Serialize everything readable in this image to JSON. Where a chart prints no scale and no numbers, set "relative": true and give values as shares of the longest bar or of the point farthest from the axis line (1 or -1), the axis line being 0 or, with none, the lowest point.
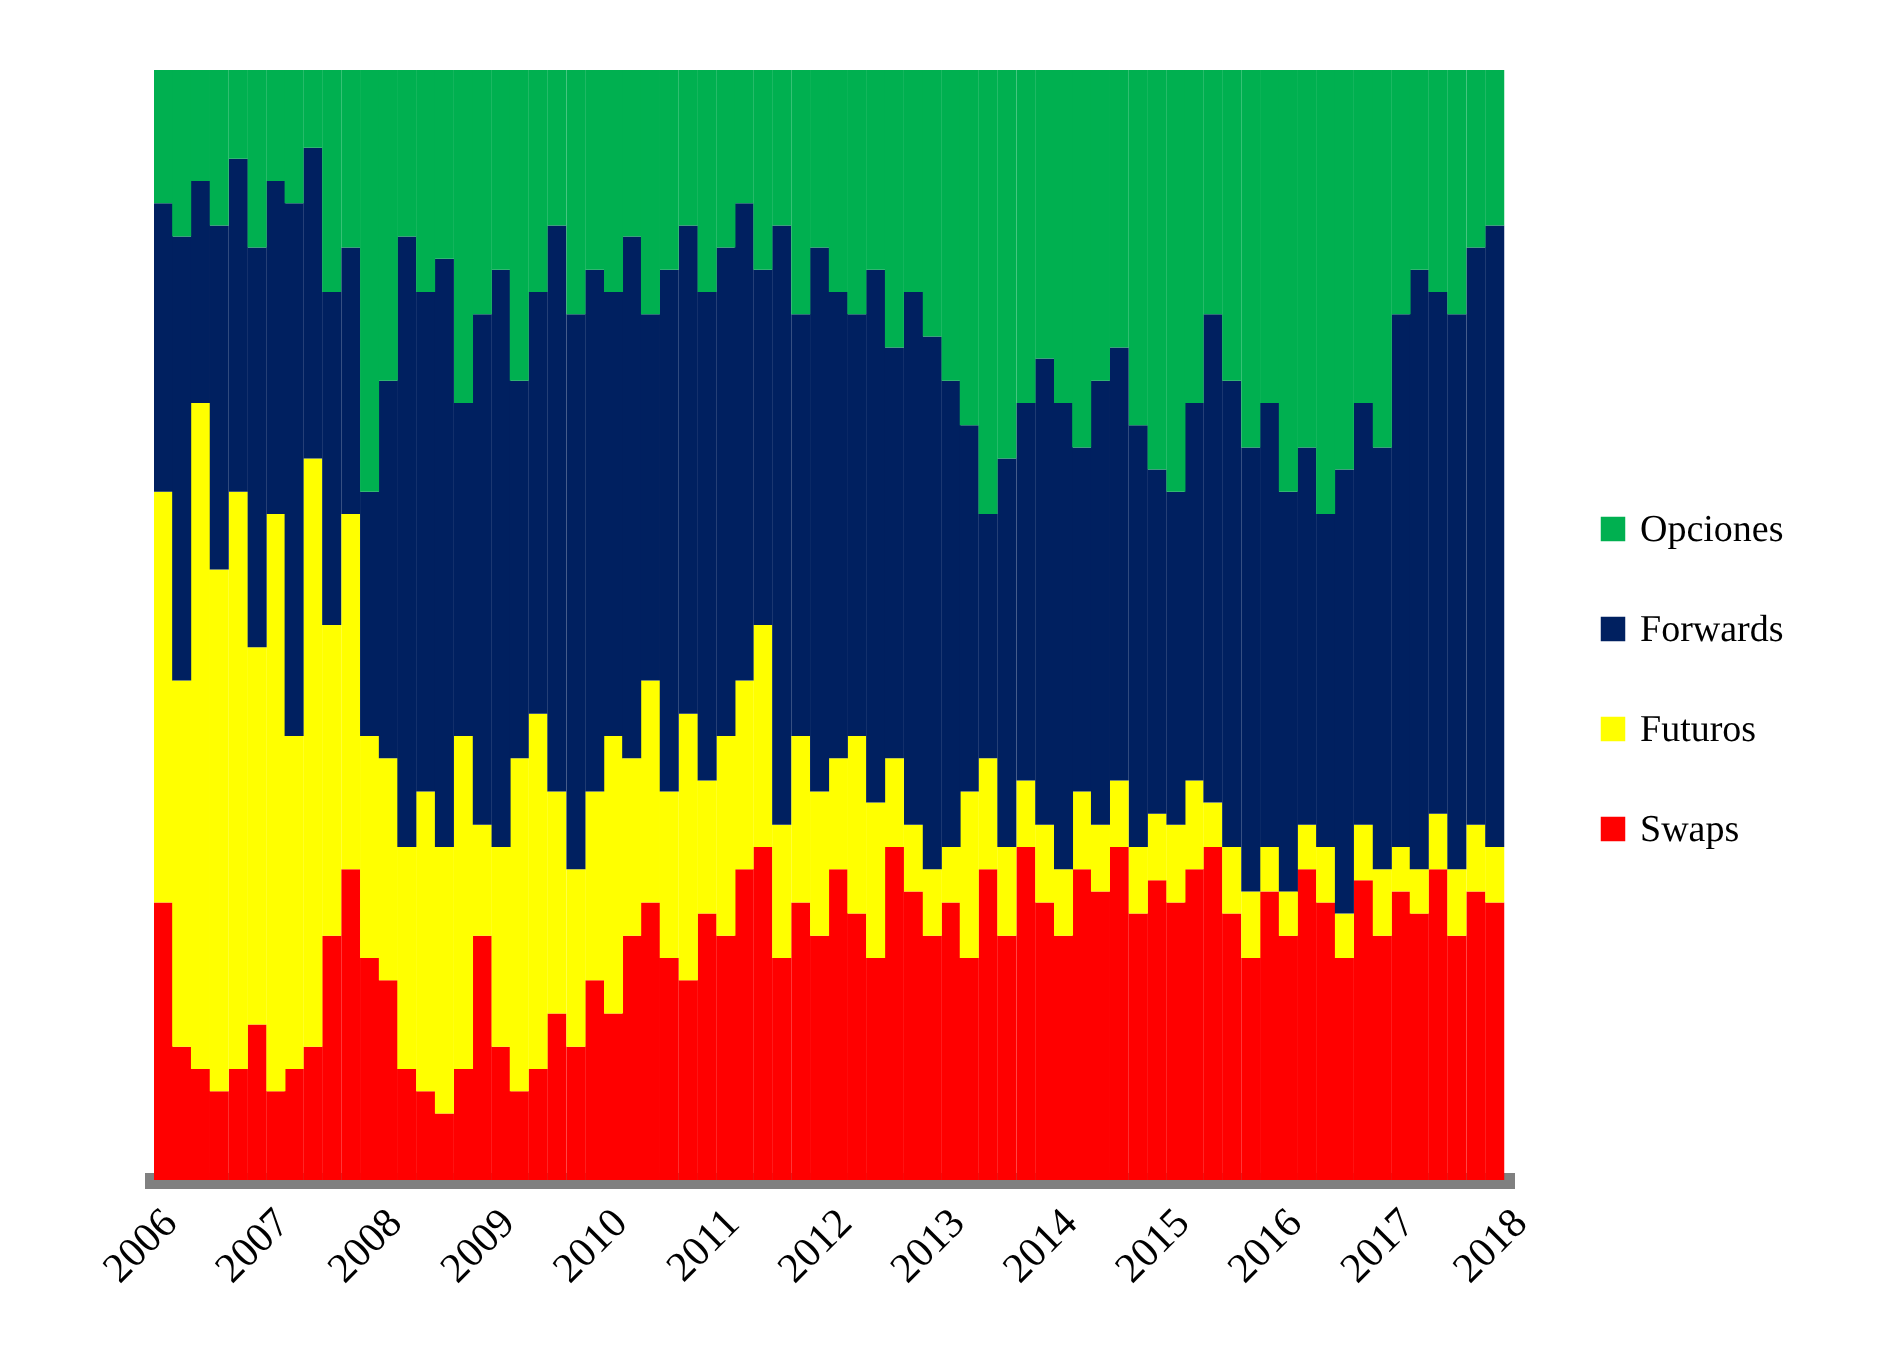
{
  "chart_data": {
    "type": "bar",
    "stacked": true,
    "relative": true,
    "legend": "right",
    "grid": false,
    "x": [
      "2006-01",
      "2006-03",
      "2006-05",
      "2006-07",
      "2006-09",
      "2006-11",
      "2007-01",
      "2007-03",
      "2007-05",
      "2007-07",
      "2007-09",
      "2007-11",
      "2008-01",
      "2008-03",
      "2008-05",
      "2008-07",
      "2008-09",
      "2008-11",
      "2009-01",
      "2009-03",
      "2009-05",
      "2009-07",
      "2009-09",
      "2009-11",
      "2010-01",
      "2010-03",
      "2010-05",
      "2010-07",
      "2010-09",
      "2010-11",
      "2011-01",
      "2011-03",
      "2011-05",
      "2011-07",
      "2011-09",
      "2011-11",
      "2012-01",
      "2012-03",
      "2012-05",
      "2012-07",
      "2012-09",
      "2012-11",
      "2013-01",
      "2013-03",
      "2013-05",
      "2013-07",
      "2013-09",
      "2013-11",
      "2014-01",
      "2014-03",
      "2014-05",
      "2014-07",
      "2014-09",
      "2014-11",
      "2015-01",
      "2015-03",
      "2015-05",
      "2015-07",
      "2015-09",
      "2015-11",
      "2016-01",
      "2016-03",
      "2016-05",
      "2016-07",
      "2016-09",
      "2016-11",
      "2017-01",
      "2017-03",
      "2017-05",
      "2017-07",
      "2017-09",
      "2017-11"
    ],
    "xlim": [
      "2006-01-01",
      "2018-01-01"
    ],
    "xticks": [
      "2006",
      "2007",
      "2008",
      "2009",
      "2010",
      "2011",
      "2012",
      "2013",
      "2014",
      "2015",
      "2016",
      "2017",
      "2018"
    ],
    "series": [
      {
        "name": "Swaps",
        "color": "#ff0000",
        "values": [
          0.25,
          0.12,
          0.1,
          0.08,
          0.1,
          0.14,
          0.08,
          0.1,
          0.12,
          0.22,
          0.28,
          0.2,
          0.18,
          0.1,
          0.08,
          0.06,
          0.1,
          0.22,
          0.12,
          0.08,
          0.1,
          0.15,
          0.12,
          0.18,
          0.15,
          0.22,
          0.25,
          0.2,
          0.18,
          0.24,
          0.22,
          0.28,
          0.3,
          0.2,
          0.25,
          0.22,
          0.28,
          0.24,
          0.2,
          0.3,
          0.26,
          0.22,
          0.25,
          0.2,
          0.28,
          0.22,
          0.3,
          0.25,
          0.22,
          0.28,
          0.26,
          0.3,
          0.24,
          0.27,
          0.25,
          0.28,
          0.3,
          0.24,
          0.2,
          0.26,
          0.22,
          0.28,
          0.25,
          0.2,
          0.27,
          0.22,
          0.26,
          0.24,
          0.28,
          0.22,
          0.26,
          0.25
        ]
      },
      {
        "name": "Futuros",
        "color": "#ffff00",
        "values": [
          0.37,
          0.33,
          0.6,
          0.47,
          0.52,
          0.34,
          0.52,
          0.3,
          0.53,
          0.28,
          0.32,
          0.2,
          0.2,
          0.2,
          0.27,
          0.24,
          0.3,
          0.1,
          0.18,
          0.3,
          0.32,
          0.2,
          0.16,
          0.17,
          0.25,
          0.16,
          0.2,
          0.15,
          0.24,
          0.12,
          0.18,
          0.17,
          0.2,
          0.12,
          0.15,
          0.13,
          0.1,
          0.16,
          0.14,
          0.08,
          0.06,
          0.06,
          0.05,
          0.15,
          0.1,
          0.08,
          0.06,
          0.07,
          0.06,
          0.07,
          0.06,
          0.06,
          0.06,
          0.06,
          0.07,
          0.08,
          0.04,
          0.06,
          0.06,
          0.04,
          0.04,
          0.04,
          0.05,
          0.04,
          0.05,
          0.06,
          0.04,
          0.04,
          0.05,
          0.06,
          0.06,
          0.05
        ]
      },
      {
        "name": "Forwards",
        "color": "#002060",
        "values": [
          0.26,
          0.4,
          0.2,
          0.31,
          0.3,
          0.36,
          0.3,
          0.48,
          0.28,
          0.3,
          0.24,
          0.22,
          0.34,
          0.55,
          0.45,
          0.53,
          0.3,
          0.46,
          0.52,
          0.34,
          0.38,
          0.51,
          0.5,
          0.47,
          0.4,
          0.47,
          0.33,
          0.47,
          0.44,
          0.44,
          0.44,
          0.43,
          0.32,
          0.54,
          0.38,
          0.49,
          0.42,
          0.38,
          0.48,
          0.37,
          0.48,
          0.48,
          0.42,
          0.33,
          0.22,
          0.35,
          0.34,
          0.42,
          0.42,
          0.31,
          0.4,
          0.39,
          0.38,
          0.31,
          0.3,
          0.34,
          0.44,
          0.42,
          0.4,
          0.4,
          0.36,
          0.34,
          0.3,
          0.4,
          0.38,
          0.38,
          0.48,
          0.54,
          0.47,
          0.5,
          0.52,
          0.56
        ]
      },
      {
        "name": "Opciones",
        "color": "#00b050",
        "values": [
          0.12,
          0.15,
          0.1,
          0.14,
          0.08,
          0.16,
          0.1,
          0.12,
          0.07,
          0.2,
          0.16,
          0.38,
          0.28,
          0.15,
          0.2,
          0.17,
          0.3,
          0.22,
          0.18,
          0.28,
          0.2,
          0.14,
          0.22,
          0.18,
          0.2,
          0.15,
          0.22,
          0.18,
          0.14,
          0.2,
          0.16,
          0.12,
          0.18,
          0.14,
          0.22,
          0.16,
          0.2,
          0.22,
          0.18,
          0.25,
          0.2,
          0.24,
          0.28,
          0.32,
          0.4,
          0.35,
          0.3,
          0.26,
          0.3,
          0.34,
          0.28,
          0.25,
          0.32,
          0.36,
          0.38,
          0.3,
          0.22,
          0.28,
          0.34,
          0.3,
          0.38,
          0.34,
          0.4,
          0.36,
          0.3,
          0.34,
          0.22,
          0.18,
          0.2,
          0.22,
          0.16,
          0.14
        ]
      }
    ]
  }
}
